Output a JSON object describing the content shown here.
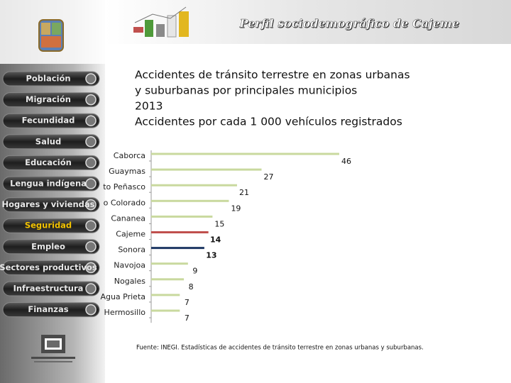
{
  "header": {
    "title": "Perfil sociodemográfico de Cajeme"
  },
  "menu": [
    "Población",
    "Migración",
    "Fecundidad",
    "Salud",
    "Educación",
    "Lengua indígena",
    "Hogares y viviendas",
    "Seguridad",
    "Empleo",
    "Sectores productivos",
    "Infraestructura",
    "Finanzas"
  ],
  "menu_active": 7,
  "chart_data": {
    "type": "bar",
    "orientation": "horizontal",
    "title": [
      "Accidentes de tránsito terrestre en zonas urbanas",
      "y suburbanas por principales municipios",
      "2013",
      "Accidentes por cada 1 000 vehículos registrados"
    ],
    "categories": [
      "Caborca",
      "Guaymas",
      "to Peñasco",
      "o Colorado",
      "Cananea",
      "Cajeme",
      "Sonora",
      "Navojoa",
      "Nogales",
      "Agua Prieta",
      "Hermosillo"
    ],
    "values": [
      46,
      27,
      21,
      19,
      15,
      14,
      13,
      9,
      8,
      7,
      7
    ],
    "colors": [
      "#c9d99e",
      "#c9d99e",
      "#c9d99e",
      "#c9d99e",
      "#c9d99e",
      "#c0504d",
      "#1f3864",
      "#c9d99e",
      "#c9d99e",
      "#c9d99e",
      "#c9d99e"
    ],
    "source": "Fuente: INEGI. Estadísticas de accidentes de tránsito terrestre en zonas urbanas y suburbanas."
  }
}
